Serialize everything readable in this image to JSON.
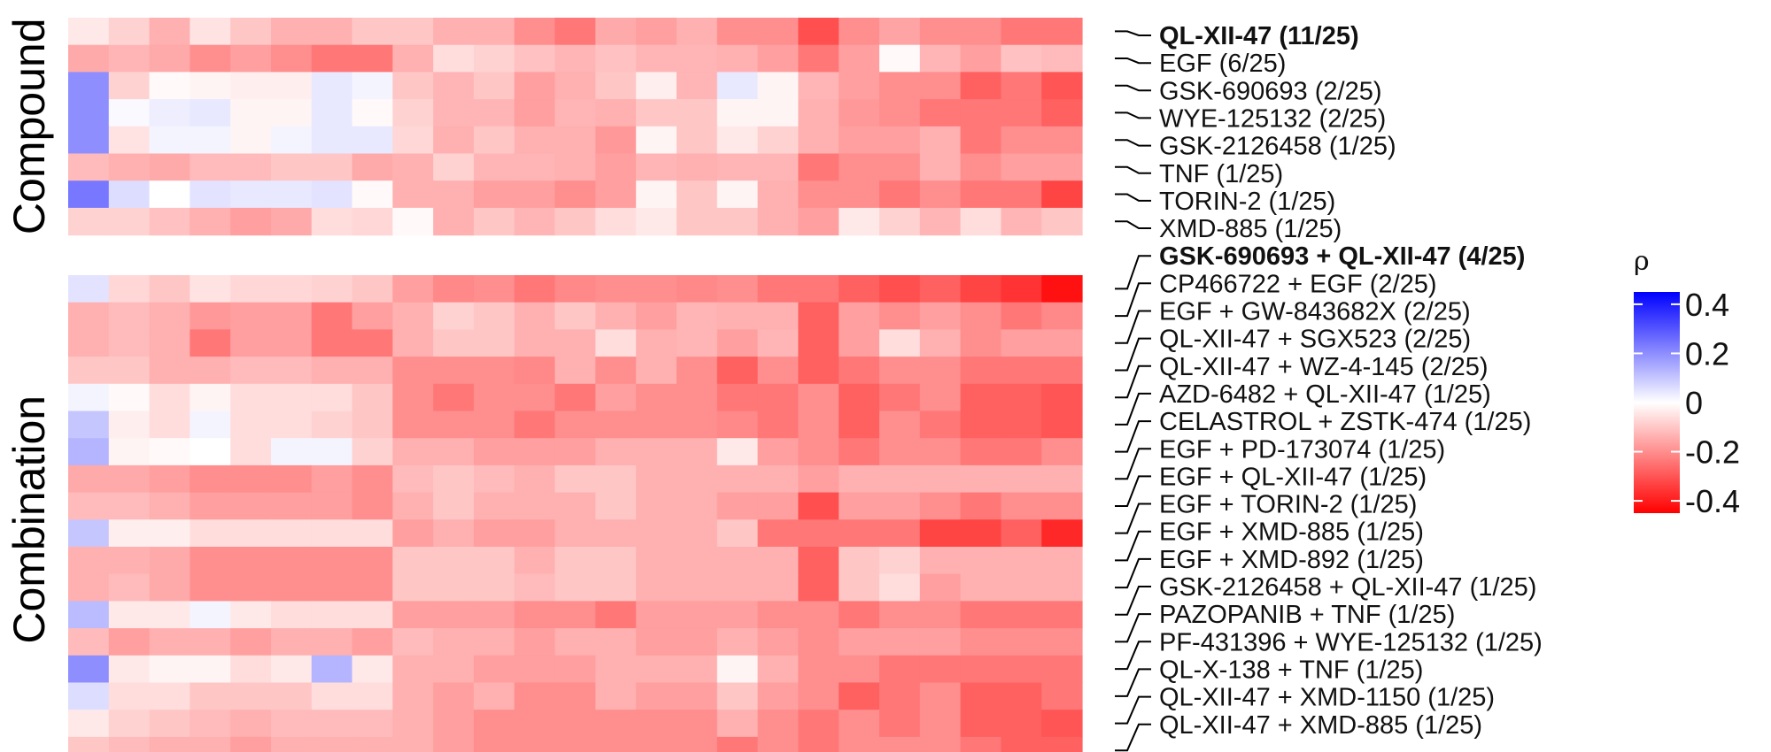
{
  "chart_data": {
    "type": "heatmap",
    "columns": 25,
    "colorscale": {
      "low": "#ff0000",
      "mid": "#ffffff",
      "high": "#0000ff"
    },
    "legend": {
      "title": "ρ",
      "min": -0.45,
      "max": 0.45,
      "ticks": [
        {
          "value": 0.4,
          "label": "0.4"
        },
        {
          "value": 0.2,
          "label": "0.2"
        },
        {
          "value": 0,
          "label": "0"
        },
        {
          "value": -0.2,
          "label": "-0.2"
        },
        {
          "value": -0.4,
          "label": "-0.4"
        }
      ]
    },
    "groups": [
      {
        "name": "Compound",
        "rows": [
          {
            "label": "QL-XII-47 (11/25)",
            "bold": true,
            "values": [
              -0.04,
              -0.08,
              -0.14,
              -0.05,
              -0.1,
              -0.14,
              -0.14,
              -0.1,
              -0.1,
              -0.14,
              -0.14,
              -0.2,
              -0.24,
              -0.15,
              -0.17,
              -0.14,
              -0.2,
              -0.2,
              -0.31,
              -0.2,
              -0.16,
              -0.2,
              -0.2,
              -0.24,
              -0.24
            ]
          },
          {
            "label": "EGF (6/25)",
            "bold": false,
            "values": [
              -0.15,
              -0.13,
              -0.15,
              -0.2,
              -0.17,
              -0.2,
              -0.24,
              -0.24,
              -0.14,
              -0.06,
              -0.08,
              -0.11,
              -0.13,
              -0.11,
              -0.13,
              -0.13,
              -0.14,
              -0.17,
              -0.24,
              -0.17,
              -0.01,
              -0.13,
              -0.17,
              -0.11,
              -0.12
            ]
          },
          {
            "label": "GSK-690693 (2/25)",
            "bold": false,
            "values": [
              0.2,
              -0.08,
              -0.01,
              -0.02,
              -0.03,
              -0.03,
              0.04,
              0.02,
              -0.1,
              -0.13,
              -0.1,
              -0.17,
              -0.14,
              -0.1,
              -0.03,
              -0.13,
              0.04,
              -0.02,
              -0.13,
              -0.17,
              -0.2,
              -0.2,
              -0.28,
              -0.24,
              -0.3
            ]
          },
          {
            "label": "WYE-125132 (2/25)",
            "bold": false,
            "values": [
              0.2,
              0.01,
              0.03,
              0.04,
              -0.02,
              -0.02,
              0.04,
              -0.01,
              -0.08,
              -0.13,
              -0.13,
              -0.17,
              -0.13,
              -0.14,
              -0.1,
              -0.1,
              -0.02,
              -0.02,
              -0.14,
              -0.18,
              -0.2,
              -0.24,
              -0.24,
              -0.24,
              -0.28
            ]
          },
          {
            "label": "GSK-2126458 (1/25)",
            "bold": false,
            "values": [
              0.2,
              -0.05,
              0.02,
              0.02,
              -0.02,
              0.02,
              0.04,
              0.04,
              -0.07,
              -0.14,
              -0.1,
              -0.14,
              -0.14,
              -0.18,
              -0.02,
              -0.1,
              -0.04,
              -0.08,
              -0.14,
              -0.17,
              -0.17,
              -0.14,
              -0.24,
              -0.2,
              -0.2
            ]
          },
          {
            "label": "TNF (1/25)",
            "bold": false,
            "values": [
              -0.12,
              -0.14,
              -0.15,
              -0.12,
              -0.12,
              -0.1,
              -0.1,
              -0.15,
              -0.14,
              -0.08,
              -0.13,
              -0.13,
              -0.14,
              -0.17,
              -0.13,
              -0.14,
              -0.13,
              -0.13,
              -0.24,
              -0.2,
              -0.2,
              -0.14,
              -0.2,
              -0.17,
              -0.17
            ]
          },
          {
            "label": "TORIN-2 (1/25)",
            "bold": false,
            "values": [
              0.24,
              0.06,
              0.0,
              0.05,
              0.04,
              0.04,
              0.05,
              -0.01,
              -0.14,
              -0.14,
              -0.17,
              -0.17,
              -0.2,
              -0.17,
              -0.02,
              -0.1,
              -0.02,
              -0.14,
              -0.2,
              -0.2,
              -0.24,
              -0.2,
              -0.24,
              -0.24,
              -0.33
            ]
          },
          {
            "label": "XMD-885 (1/25)",
            "bold": false,
            "values": [
              -0.08,
              -0.08,
              -0.11,
              -0.14,
              -0.17,
              -0.15,
              -0.06,
              -0.07,
              -0.01,
              -0.14,
              -0.1,
              -0.13,
              -0.1,
              -0.06,
              -0.04,
              -0.1,
              -0.1,
              -0.14,
              -0.17,
              -0.04,
              -0.08,
              -0.13,
              -0.06,
              -0.13,
              -0.1
            ]
          }
        ]
      },
      {
        "name": "Combination",
        "rows": [
          {
            "label": "GSK-690693 + QL-XII-47 (4/25)",
            "bold": true,
            "values": [
              0.05,
              -0.07,
              -0.1,
              -0.05,
              -0.07,
              -0.07,
              -0.08,
              -0.1,
              -0.17,
              -0.21,
              -0.2,
              -0.24,
              -0.21,
              -0.2,
              -0.2,
              -0.21,
              -0.2,
              -0.24,
              -0.24,
              -0.28,
              -0.31,
              -0.28,
              -0.33,
              -0.36,
              -0.42
            ]
          },
          {
            "label": "CP466722 + EGF (2/25)",
            "bold": false,
            "values": [
              -0.14,
              -0.12,
              -0.14,
              -0.18,
              -0.17,
              -0.17,
              -0.24,
              -0.17,
              -0.14,
              -0.08,
              -0.1,
              -0.14,
              -0.1,
              -0.14,
              -0.17,
              -0.13,
              -0.14,
              -0.14,
              -0.28,
              -0.17,
              -0.2,
              -0.17,
              -0.2,
              -0.24,
              -0.21
            ]
          },
          {
            "label": "EGF + GW-843682X (2/25)",
            "bold": false,
            "values": [
              -0.14,
              -0.12,
              -0.14,
              -0.24,
              -0.17,
              -0.17,
              -0.24,
              -0.24,
              -0.14,
              -0.1,
              -0.1,
              -0.14,
              -0.14,
              -0.06,
              -0.14,
              -0.13,
              -0.17,
              -0.13,
              -0.28,
              -0.17,
              -0.06,
              -0.14,
              -0.2,
              -0.17,
              -0.17
            ]
          },
          {
            "label": "QL-XII-47 + SGX523 (2/25)",
            "bold": false,
            "values": [
              -0.1,
              -0.1,
              -0.14,
              -0.14,
              -0.12,
              -0.12,
              -0.14,
              -0.14,
              -0.2,
              -0.2,
              -0.2,
              -0.21,
              -0.14,
              -0.2,
              -0.14,
              -0.2,
              -0.28,
              -0.2,
              -0.28,
              -0.24,
              -0.2,
              -0.2,
              -0.24,
              -0.24,
              -0.24
            ]
          },
          {
            "label": "QL-XII-47 + WZ-4-145 (2/25)",
            "bold": false,
            "values": [
              0.02,
              -0.01,
              -0.06,
              -0.02,
              -0.06,
              -0.06,
              -0.06,
              -0.1,
              -0.2,
              -0.24,
              -0.2,
              -0.2,
              -0.24,
              -0.17,
              -0.2,
              -0.2,
              -0.24,
              -0.24,
              -0.2,
              -0.28,
              -0.24,
              -0.2,
              -0.28,
              -0.28,
              -0.3
            ]
          },
          {
            "label": "AZD-6482 + QL-XII-47 (1/25)",
            "bold": false,
            "values": [
              0.1,
              -0.03,
              -0.06,
              0.02,
              -0.06,
              -0.06,
              -0.08,
              -0.1,
              -0.2,
              -0.2,
              -0.2,
              -0.24,
              -0.2,
              -0.2,
              -0.2,
              -0.2,
              -0.21,
              -0.24,
              -0.2,
              -0.28,
              -0.2,
              -0.24,
              -0.28,
              -0.28,
              -0.3
            ]
          },
          {
            "label": "CELASTROL + ZSTK-474 (1/25)",
            "bold": false,
            "values": [
              0.13,
              -0.02,
              -0.01,
              0.0,
              -0.06,
              0.02,
              0.02,
              -0.08,
              -0.14,
              -0.14,
              -0.17,
              -0.17,
              -0.17,
              -0.14,
              -0.14,
              -0.14,
              -0.04,
              -0.17,
              -0.2,
              -0.24,
              -0.2,
              -0.2,
              -0.24,
              -0.24,
              -0.2
            ]
          },
          {
            "label": "EGF + PD-173074 (1/25)",
            "bold": false,
            "values": [
              -0.15,
              -0.15,
              -0.17,
              -0.2,
              -0.2,
              -0.2,
              -0.17,
              -0.2,
              -0.12,
              -0.1,
              -0.12,
              -0.14,
              -0.1,
              -0.1,
              -0.14,
              -0.14,
              -0.14,
              -0.14,
              -0.17,
              -0.14,
              -0.14,
              -0.14,
              -0.14,
              -0.14,
              -0.14
            ]
          },
          {
            "label": "EGF + QL-XII-47 (1/25)",
            "bold": false,
            "values": [
              -0.12,
              -0.12,
              -0.14,
              -0.17,
              -0.17,
              -0.17,
              -0.17,
              -0.2,
              -0.14,
              -0.1,
              -0.14,
              -0.14,
              -0.14,
              -0.1,
              -0.14,
              -0.14,
              -0.17,
              -0.17,
              -0.31,
              -0.17,
              -0.17,
              -0.2,
              -0.24,
              -0.2,
              -0.2
            ]
          },
          {
            "label": "EGF + TORIN-2 (1/25)",
            "bold": false,
            "values": [
              0.1,
              -0.03,
              -0.03,
              -0.06,
              -0.06,
              -0.06,
              -0.06,
              -0.06,
              -0.17,
              -0.14,
              -0.17,
              -0.17,
              -0.14,
              -0.14,
              -0.14,
              -0.14,
              -0.1,
              -0.24,
              -0.24,
              -0.24,
              -0.24,
              -0.33,
              -0.33,
              -0.28,
              -0.38
            ]
          },
          {
            "label": "EGF + XMD-885 (1/25)",
            "bold": false,
            "values": [
              -0.14,
              -0.14,
              -0.15,
              -0.2,
              -0.2,
              -0.2,
              -0.2,
              -0.2,
              -0.1,
              -0.1,
              -0.1,
              -0.14,
              -0.1,
              -0.1,
              -0.14,
              -0.14,
              -0.14,
              -0.14,
              -0.28,
              -0.1,
              -0.08,
              -0.14,
              -0.14,
              -0.14,
              -0.14
            ]
          },
          {
            "label": "EGF + XMD-892 (1/25)",
            "bold": false,
            "values": [
              -0.14,
              -0.12,
              -0.15,
              -0.2,
              -0.2,
              -0.2,
              -0.2,
              -0.2,
              -0.1,
              -0.1,
              -0.1,
              -0.12,
              -0.1,
              -0.1,
              -0.14,
              -0.14,
              -0.14,
              -0.14,
              -0.28,
              -0.1,
              -0.06,
              -0.17,
              -0.14,
              -0.14,
              -0.14
            ]
          },
          {
            "label": "GSK-2126458 + QL-XII-47 (1/25)",
            "bold": false,
            "values": [
              0.12,
              -0.04,
              -0.04,
              0.02,
              -0.04,
              -0.06,
              -0.06,
              -0.06,
              -0.17,
              -0.17,
              -0.17,
              -0.2,
              -0.2,
              -0.24,
              -0.17,
              -0.17,
              -0.17,
              -0.2,
              -0.2,
              -0.24,
              -0.2,
              -0.2,
              -0.24,
              -0.24,
              -0.24
            ]
          },
          {
            "label": "PAZOPANIB + TNF (1/25)",
            "bold": false,
            "values": [
              -0.12,
              -0.17,
              -0.14,
              -0.14,
              -0.17,
              -0.14,
              -0.14,
              -0.17,
              -0.12,
              -0.14,
              -0.14,
              -0.17,
              -0.14,
              -0.14,
              -0.17,
              -0.17,
              -0.14,
              -0.17,
              -0.2,
              -0.17,
              -0.17,
              -0.17,
              -0.2,
              -0.2,
              -0.2
            ]
          },
          {
            "label": "PF-431396 + WYE-125132 (1/25)",
            "bold": false,
            "values": [
              0.2,
              -0.04,
              -0.02,
              -0.02,
              -0.06,
              -0.04,
              0.13,
              -0.04,
              -0.14,
              -0.14,
              -0.17,
              -0.17,
              -0.17,
              -0.14,
              -0.14,
              -0.14,
              -0.02,
              -0.14,
              -0.2,
              -0.2,
              -0.24,
              -0.24,
              -0.24,
              -0.24,
              -0.24
            ]
          },
          {
            "label": "QL-X-138 + TNF (1/25)",
            "bold": false,
            "values": [
              0.06,
              -0.06,
              -0.06,
              -0.1,
              -0.1,
              -0.1,
              -0.06,
              -0.06,
              -0.14,
              -0.17,
              -0.14,
              -0.2,
              -0.2,
              -0.14,
              -0.17,
              -0.17,
              -0.1,
              -0.17,
              -0.2,
              -0.28,
              -0.24,
              -0.2,
              -0.28,
              -0.28,
              -0.24
            ]
          },
          {
            "label": "QL-XII-47 + XMD-1150 (1/25)",
            "bold": false,
            "values": [
              -0.04,
              -0.08,
              -0.1,
              -0.12,
              -0.14,
              -0.12,
              -0.12,
              -0.12,
              -0.14,
              -0.17,
              -0.2,
              -0.2,
              -0.2,
              -0.2,
              -0.2,
              -0.2,
              -0.14,
              -0.2,
              -0.24,
              -0.2,
              -0.24,
              -0.2,
              -0.28,
              -0.28,
              -0.3
            ]
          },
          {
            "label": "QL-XII-47 + XMD-885 (1/25)",
            "bold": false,
            "values": [
              -0.1,
              -0.12,
              -0.14,
              -0.14,
              -0.17,
              -0.14,
              -0.14,
              -0.14,
              -0.14,
              -0.17,
              -0.2,
              -0.2,
              -0.2,
              -0.2,
              -0.2,
              -0.2,
              -0.24,
              -0.2,
              -0.24,
              -0.2,
              -0.2,
              -0.2,
              -0.24,
              -0.28,
              -0.28
            ]
          }
        ]
      }
    ]
  }
}
